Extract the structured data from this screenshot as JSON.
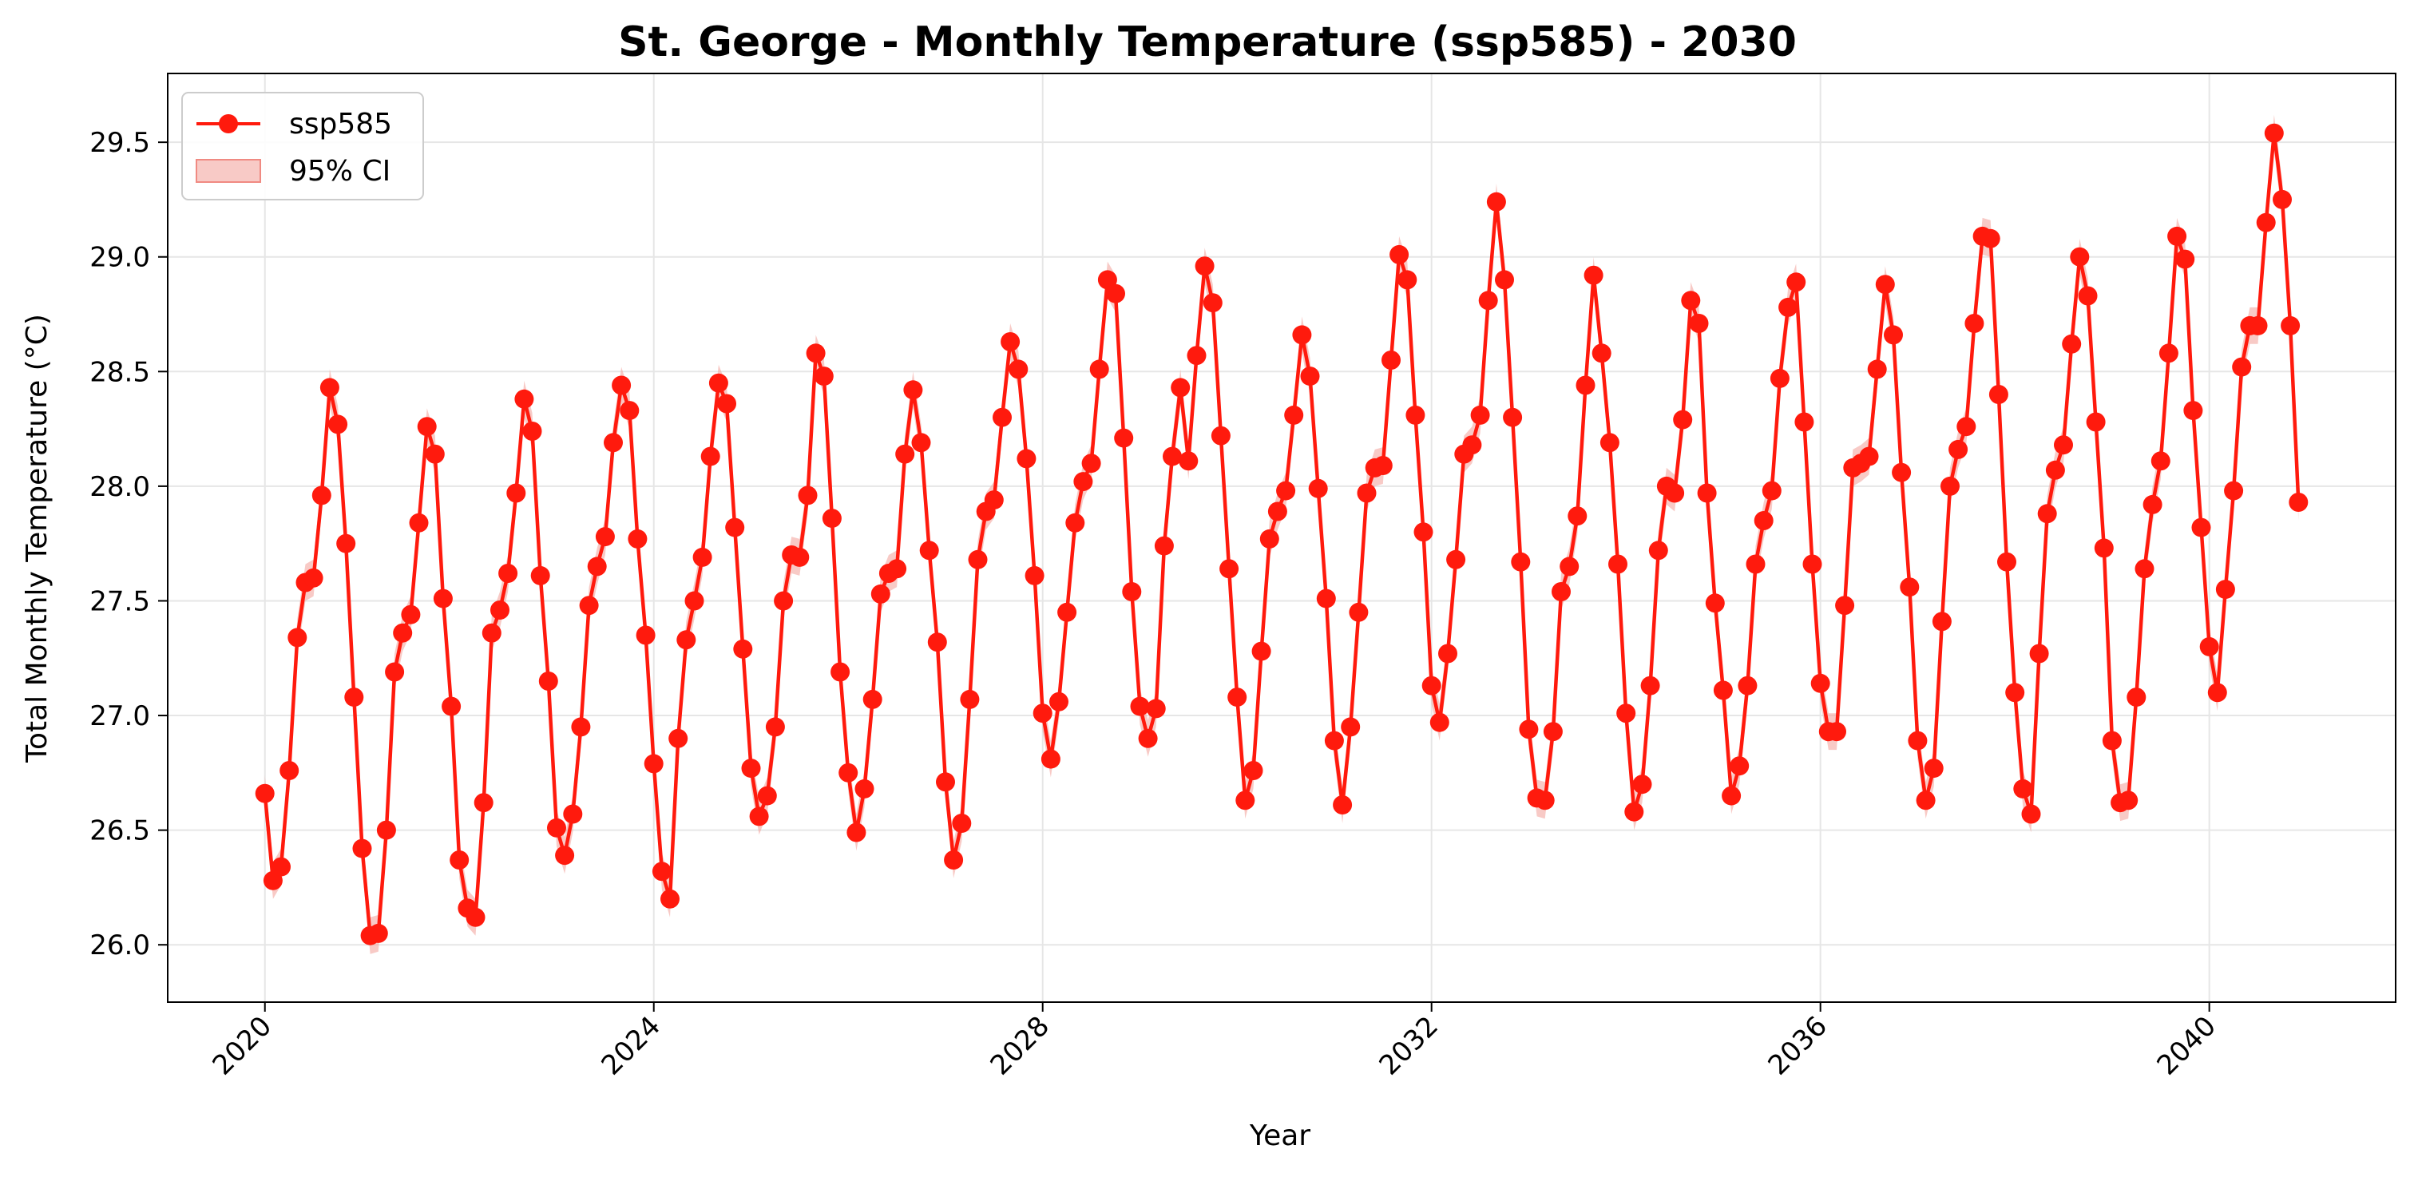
{
  "chart_data": {
    "type": "line",
    "title": "St. George - Monthly Temperature (ssp585) - 2030",
    "xlabel": "Year",
    "ylabel": "Total Monthly Temperature (°C)",
    "x_start": "2020-01",
    "frequency": "monthly",
    "xlim": [
      "2019-01",
      "2041-12"
    ],
    "ylim": [
      25.75,
      29.8
    ],
    "x_ticks": [
      "2020",
      "2024",
      "2028",
      "2032",
      "2036",
      "2040"
    ],
    "y_ticks": [
      "26.0",
      "26.5",
      "27.0",
      "27.5",
      "28.0",
      "28.5",
      "29.0",
      "29.5"
    ],
    "grid": true,
    "legend_position": "top-left",
    "colors": {
      "line": "#ff1a0d",
      "ci": "#f4a6a0"
    },
    "ci_half_width": 0.08,
    "series": [
      {
        "name": "ssp585",
        "legend_ci": "95% CI",
        "values": [
          26.66,
          26.28,
          26.34,
          26.76,
          27.34,
          27.58,
          27.6,
          27.96,
          28.43,
          28.27,
          27.75,
          27.08,
          26.42,
          26.04,
          26.05,
          26.5,
          27.19,
          27.36,
          27.44,
          27.84,
          28.26,
          28.14,
          27.51,
          27.04,
          26.37,
          26.16,
          26.12,
          26.62,
          27.36,
          27.46,
          27.62,
          27.97,
          28.38,
          28.24,
          27.61,
          27.15,
          26.51,
          26.39,
          26.57,
          26.95,
          27.48,
          27.65,
          27.78,
          28.19,
          28.44,
          28.33,
          27.77,
          27.35,
          26.79,
          26.32,
          26.2,
          26.9,
          27.33,
          27.5,
          27.69,
          28.13,
          28.45,
          28.36,
          27.82,
          27.29,
          26.77,
          26.56,
          26.65,
          26.95,
          27.5,
          27.7,
          27.69,
          27.96,
          28.58,
          28.48,
          27.86,
          27.19,
          26.75,
          26.49,
          26.68,
          27.07,
          27.53,
          27.62,
          27.64,
          28.14,
          28.42,
          28.19,
          27.72,
          27.32,
          26.71,
          26.37,
          26.53,
          27.07,
          27.68,
          27.89,
          27.94,
          28.3,
          28.63,
          28.51,
          28.12,
          27.61,
          27.01,
          26.81,
          27.06,
          27.45,
          27.84,
          28.02,
          28.1,
          28.51,
          28.9,
          28.84,
          28.21,
          27.54,
          27.04,
          26.9,
          27.03,
          27.74,
          28.13,
          28.43,
          28.11,
          28.57,
          28.96,
          28.8,
          28.22,
          27.64,
          27.08,
          26.63,
          26.76,
          27.28,
          27.77,
          27.89,
          27.98,
          28.31,
          28.66,
          28.48,
          27.99,
          27.51,
          26.89,
          26.61,
          26.95,
          27.45,
          27.97,
          28.08,
          28.09,
          28.55,
          29.01,
          28.9,
          28.31,
          27.8,
          27.13,
          26.97,
          27.27,
          27.68,
          28.14,
          28.18,
          28.31,
          28.81,
          29.24,
          28.9,
          28.3,
          27.67,
          26.94,
          26.64,
          26.63,
          26.93,
          27.54,
          27.65,
          27.87,
          28.44,
          28.92,
          28.58,
          28.19,
          27.66,
          27.01,
          26.58,
          26.7,
          27.13,
          27.72,
          28.0,
          27.97,
          28.29,
          28.81,
          28.71,
          27.97,
          27.49,
          27.11,
          26.65,
          26.78,
          27.13,
          27.66,
          27.85,
          27.98,
          28.47,
          28.78,
          28.89,
          28.28,
          27.66,
          27.14,
          26.93,
          26.93,
          27.48,
          28.08,
          28.1,
          28.13,
          28.51,
          28.88,
          28.66,
          28.06,
          27.56,
          26.89,
          26.63,
          26.77,
          27.41,
          28.0,
          28.16,
          28.26,
          28.71,
          29.09,
          29.08,
          28.4,
          27.67,
          27.1,
          26.68,
          26.57,
          27.27,
          27.88,
          28.07,
          28.18,
          28.62,
          29.0,
          28.83,
          28.28,
          27.73,
          26.89,
          26.62,
          26.63,
          27.08,
          27.64,
          27.92,
          28.11,
          28.58,
          29.09,
          28.99,
          28.33,
          27.82,
          27.3,
          27.1,
          27.55,
          27.98,
          28.52,
          28.7,
          28.7,
          29.15,
          29.54,
          29.25,
          28.7,
          27.93
        ]
      }
    ]
  }
}
